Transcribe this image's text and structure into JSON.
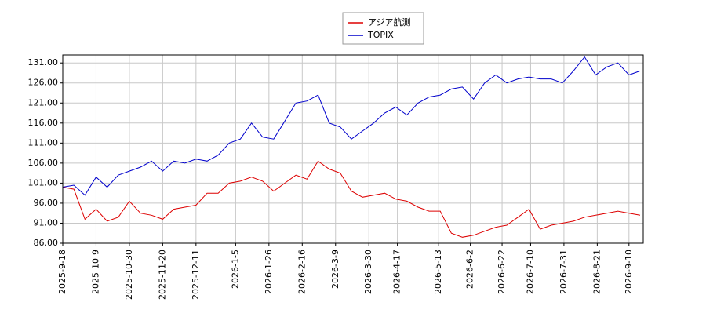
{
  "chart_data": {
    "type": "line",
    "x": [
      "2025-9-18",
      "2025-9-25",
      "2025-10-2",
      "2025-10-9",
      "2025-10-16",
      "2025-10-23",
      "2025-10-30",
      "2025-11-6",
      "2025-11-13",
      "2025-11-20",
      "2025-11-27",
      "2025-12-4",
      "2025-12-11",
      "2025-12-18",
      "2025-12-25",
      "2026-1-1",
      "2026-1-8",
      "2026-1-15",
      "2026-1-22",
      "2026-1-29",
      "2026-2-5",
      "2026-2-12",
      "2026-2-19",
      "2026-2-26",
      "2026-3-5",
      "2026-3-12",
      "2026-3-19",
      "2026-3-26",
      "2026-4-2",
      "2026-4-9",
      "2026-4-16",
      "2026-4-23",
      "2026-4-30",
      "2026-5-7",
      "2026-5-14",
      "2026-5-21",
      "2026-5-28",
      "2026-6-4",
      "2026-6-11",
      "2026-6-18",
      "2026-6-25",
      "2026-7-2",
      "2026-7-9",
      "2026-7-16",
      "2026-7-23",
      "2026-7-30",
      "2026-8-6",
      "2026-8-13",
      "2026-8-20",
      "2026-8-27",
      "2026-9-3",
      "2026-9-10",
      "2026-9-17"
    ],
    "series": [
      {
        "name": "アジア航測",
        "color": "#dd0000",
        "values": [
          100,
          99.5,
          92,
          94.5,
          91.5,
          92.5,
          96.5,
          93.5,
          93,
          92,
          94.5,
          95,
          95.5,
          98.5,
          98.5,
          101,
          101.5,
          102.5,
          101.5,
          99,
          101,
          103,
          102,
          106.5,
          104.5,
          103.5,
          99,
          97.5,
          98,
          98.5,
          97,
          96.5,
          95,
          94,
          94,
          88.5,
          87.5,
          88,
          89,
          90,
          90.5,
          92.5,
          94.5,
          89.5,
          90.5,
          91,
          91.5,
          92.5,
          93,
          93.5,
          94,
          93.5,
          93
        ]
      },
      {
        "name": "TOPIX",
        "color": "#0000cc",
        "values": [
          100,
          100.5,
          98,
          102.5,
          100,
          103,
          104,
          105,
          106.5,
          104,
          106.5,
          106,
          107,
          106.5,
          108,
          111,
          112,
          116,
          112.5,
          112,
          116.5,
          121,
          121.5,
          123,
          116,
          115,
          112,
          114,
          116,
          118.5,
          120,
          118,
          121,
          122.5,
          123,
          124.5,
          125,
          122,
          126,
          128,
          126,
          127,
          127.5,
          127,
          127,
          126,
          129,
          132.5,
          128,
          130,
          131,
          128,
          129
        ]
      }
    ],
    "xlim": [
      "2025-9-18",
      "2026-9-19"
    ],
    "xticks": [
      "2025-9-18",
      "2025-10-9",
      "2025-10-30",
      "2025-11-20",
      "2025-12-11",
      "2026-1-5",
      "2026-1-26",
      "2026-2-16",
      "2026-3-9",
      "2026-3-30",
      "2026-4-17",
      "2026-5-13",
      "2026-6-2",
      "2026-6-22",
      "2026-7-10",
      "2026-7-31",
      "2026-8-21",
      "2026-9-10"
    ],
    "ylim": [
      86,
      133
    ],
    "yticks": [
      {
        "value": 86,
        "label": "86.00"
      },
      {
        "value": 91,
        "label": "91.00"
      },
      {
        "value": 96,
        "label": "96.00"
      },
      {
        "value": 101,
        "label": "101.00"
      },
      {
        "value": 106,
        "label": "106.00"
      },
      {
        "value": 111,
        "label": "111.00"
      },
      {
        "value": 116,
        "label": "116.00"
      },
      {
        "value": 121,
        "label": "121.00"
      },
      {
        "value": 126,
        "label": "126.00"
      },
      {
        "value": 131,
        "label": "131.00"
      }
    ],
    "grid": true,
    "legend": "top"
  }
}
